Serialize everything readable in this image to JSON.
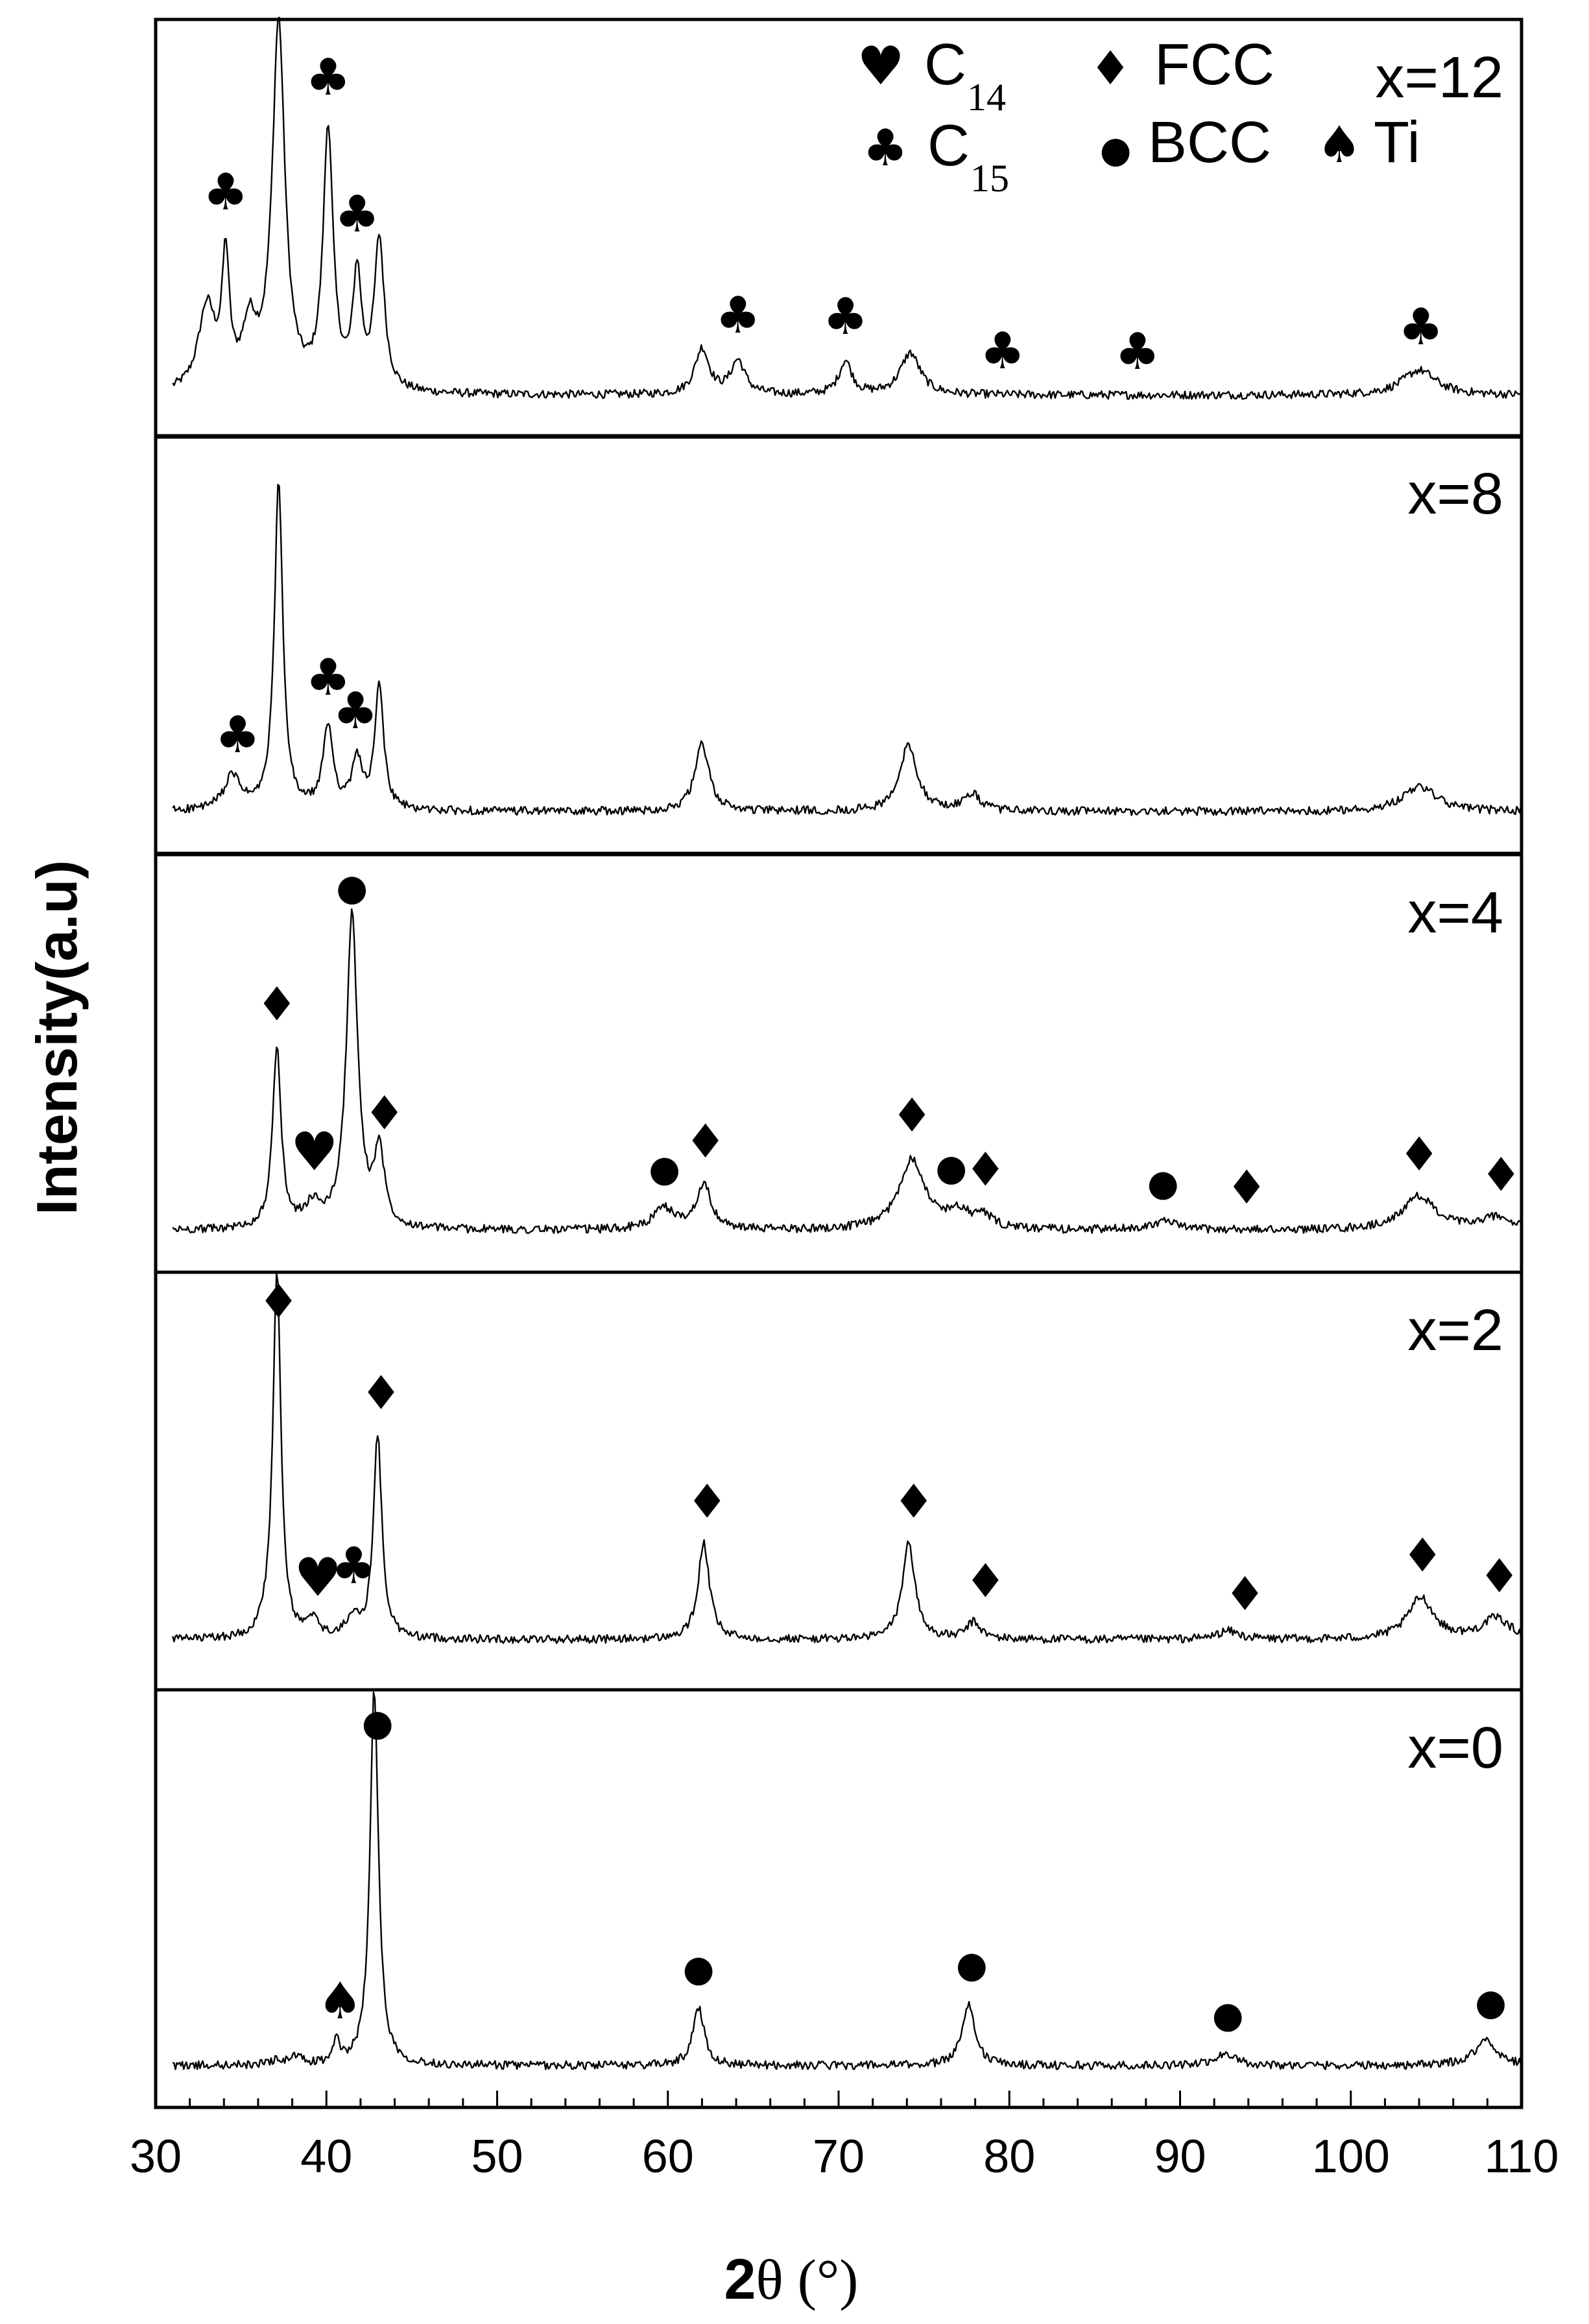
{
  "chart_data": {
    "type": "line",
    "xlabel": "2θ (°)",
    "xlabel_bold": "2",
    "xlabel_rest": "θ (°)",
    "ylabel": "Intensity(a.u)",
    "xlim": [
      30,
      110
    ],
    "xticks": [
      30,
      40,
      50,
      60,
      70,
      80,
      90,
      100,
      110
    ],
    "grid": false,
    "legend_position": "top-right",
    "legend": [
      {
        "symbol": "♥",
        "symbol_name": "heart-icon",
        "label": "C",
        "subscript": "14"
      },
      {
        "symbol": "♦",
        "symbol_name": "diamond-icon",
        "label": "FCC",
        "subscript": ""
      },
      {
        "symbol": "♣",
        "symbol_name": "club-icon",
        "label": "C",
        "subscript": "15"
      },
      {
        "symbol": "●",
        "symbol_name": "circle-icon",
        "label": "BCC",
        "subscript": ""
      },
      {
        "symbol": "♠",
        "symbol_name": "spade-icon",
        "label": "Ti",
        "subscript": ""
      }
    ],
    "panels": [
      {
        "label": "x=12",
        "baseline": 0.1,
        "peaks": [
          [
            33.0,
            0.2,
            0.6
          ],
          [
            34.1,
            0.3,
            0.25
          ],
          [
            35.5,
            0.14,
            0.5
          ],
          [
            37.2,
            0.88,
            0.45
          ],
          [
            40.1,
            0.62,
            0.35
          ],
          [
            41.8,
            0.27,
            0.3
          ],
          [
            43.1,
            0.36,
            0.35
          ],
          [
            62.0,
            0.11,
            0.5
          ],
          [
            64.1,
            0.08,
            0.5
          ],
          [
            70.4,
            0.08,
            0.45
          ],
          [
            74.2,
            0.1,
            0.7
          ],
          [
            104.0,
            0.06,
            1.2
          ]
        ],
        "markers": [
          {
            "symbol": "♣",
            "x": 34.1
          },
          {
            "symbol": "♣",
            "x": 40.1
          },
          {
            "symbol": "♣",
            "x": 41.8
          },
          {
            "symbol": "♣",
            "x": 64.1
          },
          {
            "symbol": "♣",
            "x": 70.4
          },
          {
            "symbol": "♣",
            "x": 79.6
          },
          {
            "symbol": "♣",
            "x": 87.5
          },
          {
            "symbol": "♣",
            "x": 104.1
          }
        ]
      },
      {
        "label": "x=8",
        "baseline": 0.1,
        "peaks": [
          [
            34.5,
            0.08,
            0.6
          ],
          [
            37.2,
            0.78,
            0.3
          ],
          [
            40.1,
            0.2,
            0.35
          ],
          [
            41.8,
            0.12,
            0.35
          ],
          [
            43.1,
            0.3,
            0.3
          ],
          [
            62.0,
            0.16,
            0.5
          ],
          [
            74.1,
            0.16,
            0.6
          ],
          [
            77.8,
            0.04,
            0.6
          ],
          [
            104.0,
            0.06,
            1.2
          ]
        ],
        "markers": [
          {
            "symbol": "♣",
            "x": 34.8
          },
          {
            "symbol": "♣",
            "x": 40.1
          },
          {
            "symbol": "♣",
            "x": 41.7
          }
        ]
      },
      {
        "label": "x=4",
        "baseline": 0.1,
        "peaks": [
          [
            37.1,
            0.43,
            0.3
          ],
          [
            39.2,
            0.05,
            0.6
          ],
          [
            41.5,
            0.75,
            0.4
          ],
          [
            43.1,
            0.18,
            0.35
          ],
          [
            59.8,
            0.05,
            0.8
          ],
          [
            62.1,
            0.11,
            0.5
          ],
          [
            74.3,
            0.17,
            0.9
          ],
          [
            77.0,
            0.04,
            0.8
          ],
          [
            78.5,
            0.03,
            0.6
          ],
          [
            89.0,
            0.02,
            1.0
          ],
          [
            104.0,
            0.08,
            1.2
          ],
          [
            108.5,
            0.03,
            1.0
          ]
        ],
        "markers": [
          {
            "symbol": "♦",
            "x": 37.1
          },
          {
            "symbol": "♥",
            "x": 39.3
          },
          {
            "symbol": "●",
            "x": 41.5
          },
          {
            "symbol": "♦",
            "x": 43.4
          },
          {
            "symbol": "●",
            "x": 59.8
          },
          {
            "symbol": "♦",
            "x": 62.2
          },
          {
            "symbol": "♦",
            "x": 74.3
          },
          {
            "symbol": "●",
            "x": 76.6
          },
          {
            "symbol": "♦",
            "x": 78.6
          },
          {
            "symbol": "●",
            "x": 89.0
          },
          {
            "symbol": "♦",
            "x": 93.9
          },
          {
            "symbol": "♦",
            "x": 104.0
          },
          {
            "symbol": "♦",
            "x": 108.8
          }
        ]
      },
      {
        "label": "x=2",
        "baseline": 0.12,
        "peaks": [
          [
            36.5,
            0.02,
            0.4
          ],
          [
            37.1,
            0.88,
            0.28
          ],
          [
            39.2,
            0.04,
            0.4
          ],
          [
            41.5,
            0.05,
            0.4
          ],
          [
            43.0,
            0.49,
            0.3
          ],
          [
            62.1,
            0.23,
            0.4
          ],
          [
            74.1,
            0.23,
            0.45
          ],
          [
            77.9,
            0.04,
            0.5
          ],
          [
            92.8,
            0.02,
            0.8
          ],
          [
            104.1,
            0.1,
            0.9
          ],
          [
            108.5,
            0.05,
            1.0
          ]
        ],
        "markers": [
          {
            "symbol": "♦",
            "x": 37.2
          },
          {
            "symbol": "♥",
            "x": 39.5
          },
          {
            "symbol": "♣",
            "x": 41.6
          },
          {
            "symbol": "♦",
            "x": 43.2
          },
          {
            "symbol": "♦",
            "x": 62.3
          },
          {
            "symbol": "♦",
            "x": 74.4
          },
          {
            "symbol": "♦",
            "x": 78.6
          },
          {
            "symbol": "♦",
            "x": 93.8
          },
          {
            "symbol": "♦",
            "x": 104.2
          },
          {
            "symbol": "♦",
            "x": 108.7
          }
        ]
      },
      {
        "label": "x=0",
        "baseline": 0.1,
        "peaks": [
          [
            37.0,
            0.01,
            0.5
          ],
          [
            38.2,
            0.02,
            0.4
          ],
          [
            40.6,
            0.05,
            0.25
          ],
          [
            42.8,
            0.9,
            0.3
          ],
          [
            61.8,
            0.14,
            0.4
          ],
          [
            77.6,
            0.15,
            0.45
          ],
          [
            92.7,
            0.03,
            0.7
          ],
          [
            107.9,
            0.06,
            0.8
          ]
        ],
        "markers": [
          {
            "symbol": "♠",
            "x": 40.8
          },
          {
            "symbol": "●",
            "x": 43.0
          },
          {
            "symbol": "●",
            "x": 61.8
          },
          {
            "symbol": "●",
            "x": 77.8
          },
          {
            "symbol": "●",
            "x": 92.8
          },
          {
            "symbol": "●",
            "x": 108.2
          }
        ]
      }
    ]
  }
}
